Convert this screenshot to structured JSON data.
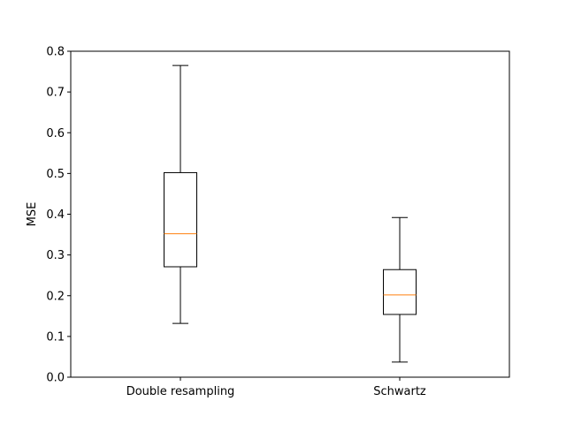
{
  "chart_data": {
    "type": "box",
    "title": "",
    "xlabel": "",
    "ylabel": "MSE",
    "ylim": [
      0.0,
      0.8
    ],
    "yticks": [
      "0.0",
      "0.1",
      "0.2",
      "0.3",
      "0.4",
      "0.5",
      "0.6",
      "0.7",
      "0.8"
    ],
    "categories": [
      "Double resampling",
      "Schwartz"
    ],
    "boxes": [
      {
        "whisker_low": 0.132,
        "q1": 0.271,
        "median": 0.352,
        "q3": 0.502,
        "whisker_high": 0.765
      },
      {
        "whisker_low": 0.037,
        "q1": 0.154,
        "median": 0.202,
        "q3": 0.264,
        "whisker_high": 0.392
      }
    ],
    "grid": false,
    "colors": {
      "box": "#000000",
      "median": "#ff7f0e",
      "axes": "#000000",
      "background": "#ffffff"
    }
  }
}
